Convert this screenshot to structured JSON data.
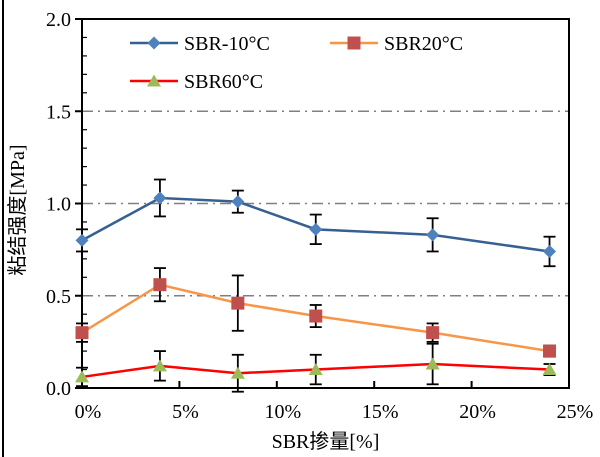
{
  "figure": {
    "background": "#ffffff",
    "left_border_color": "#000000"
  },
  "chart_data": {
    "type": "line",
    "title": "",
    "xlabel": "SBR掺量[%]",
    "ylabel": "粘结强度[MPa]",
    "xlim": [
      0,
      25
    ],
    "ylim": [
      0,
      2
    ],
    "x_ticks": [
      "0%",
      "5%",
      "10%",
      "15%",
      "20%",
      "25%"
    ],
    "x_tick_values": [
      0,
      5,
      10,
      15,
      20,
      25
    ],
    "y_ticks": [
      "0.0",
      "0.5",
      "1.0",
      "1.5",
      "2.0"
    ],
    "y_tick_values": [
      0,
      0.5,
      1.0,
      1.5,
      2.0
    ],
    "y_minor_step": 0.1,
    "gridline_values": [
      0.5,
      1.0,
      1.5
    ],
    "grid_color": "#808080",
    "axis_color": "#000000",
    "error_bar_color": "#000000",
    "legend_position": "top-inside",
    "x": [
      0,
      4,
      8,
      12,
      18,
      24
    ],
    "series": [
      {
        "name": "SBR-10°C",
        "marker": "diamond",
        "marker_color": "#4F81BD",
        "line_color": "#376092",
        "values": [
          0.8,
          1.03,
          1.01,
          0.86,
          0.83,
          0.74
        ],
        "errors": [
          0.06,
          0.1,
          0.06,
          0.08,
          0.09,
          0.08
        ]
      },
      {
        "name": "SBR20°C",
        "marker": "square",
        "marker_color": "#C0504D",
        "line_color": "#F79646",
        "values": [
          0.3,
          0.56,
          0.46,
          0.39,
          0.3,
          0.2
        ],
        "errors": [
          0.05,
          0.09,
          0.15,
          0.06,
          0.05,
          0.03
        ]
      },
      {
        "name": "SBR60°C",
        "marker": "triangle",
        "marker_color": "#9BBB59",
        "line_color": "#FF0000",
        "values": [
          0.06,
          0.12,
          0.08,
          0.1,
          0.13,
          0.1
        ],
        "errors": [
          0.05,
          0.08,
          0.1,
          0.08,
          0.11,
          0.03
        ]
      }
    ]
  }
}
